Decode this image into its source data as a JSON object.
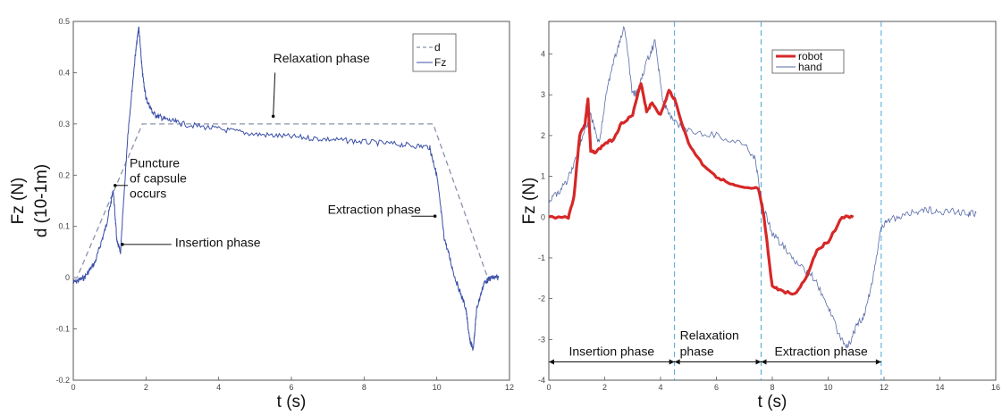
{
  "colors": {
    "signal": "#3b4fa8",
    "dashed": "#8a93a8",
    "robot": "#d62828",
    "hand": "#5a6ca8",
    "phase_line": "#49a6d6"
  },
  "chart_data": [
    {
      "type": "line",
      "xlabel": "t (s)",
      "ylabel_lines": [
        "Fz (N)",
        "d (10-1m)"
      ],
      "xlim": [
        0,
        12
      ],
      "ylim": [
        -0.2,
        0.5
      ],
      "xticks": [
        "0",
        "2",
        "4",
        "6",
        "8",
        "10",
        "12"
      ],
      "yticks": [
        "-0.2",
        "-0.1",
        "0",
        "0.1",
        "0.2",
        "0.3",
        "0.4",
        "0.5"
      ],
      "legend_position": "top-right",
      "series": [
        {
          "name": "d",
          "style": "dashed",
          "x": [
            0,
            0.1,
            1.9,
            9.9,
            11.4,
            11.7
          ],
          "y": [
            0,
            0,
            0.3,
            0.3,
            0,
            0
          ]
        },
        {
          "name": "Fz",
          "style": "noisy",
          "x": [
            0,
            0.3,
            0.6,
            0.9,
            1.1,
            1.2,
            1.3,
            1.5,
            1.7,
            1.8,
            1.9,
            2.0,
            2.2,
            2.5,
            3.0,
            4.0,
            5.0,
            6.0,
            7.0,
            8.0,
            9.0,
            9.8,
            10.0,
            10.2,
            10.5,
            10.8,
            10.9,
            11.0,
            11.1,
            11.3,
            11.5,
            11.7
          ],
          "y": [
            -0.01,
            0.0,
            0.03,
            0.1,
            0.17,
            0.07,
            0.05,
            0.28,
            0.43,
            0.49,
            0.4,
            0.35,
            0.32,
            0.31,
            0.3,
            0.29,
            0.28,
            0.275,
            0.27,
            0.265,
            0.26,
            0.255,
            0.2,
            0.08,
            0.0,
            -0.06,
            -0.12,
            -0.14,
            -0.06,
            -0.01,
            0.0,
            0.0
          ]
        }
      ],
      "annotations": [
        {
          "lines": [
            "Relaxation phase"
          ],
          "x": 5.5,
          "y": 0.31
        },
        {
          "lines": [
            "Puncture",
            "of capsule",
            "occurs"
          ],
          "x": 1.3,
          "y": 0.18
        },
        {
          "lines": [
            "Extraction phase"
          ],
          "x": 9.9,
          "y": 0.12
        },
        {
          "lines": [
            "Insertion phase"
          ],
          "x": 1.3,
          "y": 0.07
        }
      ]
    },
    {
      "type": "line",
      "xlabel": "t (s)",
      "ylabel_lines": [
        "Fz (N)"
      ],
      "xlim": [
        0,
        16
      ],
      "ylim": [
        -4,
        4.8
      ],
      "xticks": [
        "0",
        "2",
        "4",
        "6",
        "8",
        "10",
        "12",
        "14",
        "16"
      ],
      "yticks": [
        "-4",
        "-3",
        "-2",
        "-1",
        "0",
        "1",
        "2",
        "3",
        "4"
      ],
      "legend_position": "top-right",
      "series": [
        {
          "name": "robot",
          "style": "thick",
          "x": [
            0,
            0.7,
            0.9,
            1.1,
            1.3,
            1.4,
            1.5,
            1.7,
            2.0,
            2.3,
            2.6,
            3.0,
            3.3,
            3.5,
            3.7,
            4.0,
            4.3,
            4.5,
            5.0,
            5.5,
            6.0,
            6.5,
            7.0,
            7.5,
            7.7,
            8.0,
            8.3,
            8.8,
            9.2,
            9.6,
            10.0,
            10.5,
            10.9
          ],
          "y": [
            0,
            0,
            0.5,
            2.0,
            2.3,
            2.9,
            1.6,
            1.6,
            1.8,
            1.9,
            2.3,
            2.5,
            3.3,
            2.6,
            2.8,
            2.5,
            3.1,
            2.9,
            1.8,
            1.3,
            1.0,
            0.8,
            0.7,
            0.7,
            0.0,
            -1.7,
            -1.8,
            -1.9,
            -1.5,
            -0.8,
            -0.6,
            0.0,
            0.0
          ]
        },
        {
          "name": "hand",
          "style": "thin",
          "x": [
            0,
            0.3,
            0.6,
            0.9,
            1.2,
            1.5,
            1.8,
            2.1,
            2.4,
            2.7,
            3.0,
            3.2,
            3.5,
            3.8,
            4.1,
            4.4,
            5.0,
            6.0,
            7.0,
            7.4,
            7.6,
            8.0,
            8.5,
            9.0,
            9.5,
            10.0,
            10.4,
            10.7,
            11.0,
            11.3,
            11.6,
            11.9,
            12.1,
            12.5,
            13.0,
            13.5,
            14.0,
            14.5,
            15.0,
            15.3
          ],
          "y": [
            0.4,
            0.6,
            0.8,
            1.3,
            2.0,
            2.5,
            1.8,
            3.2,
            4.0,
            4.7,
            3.0,
            3.1,
            3.8,
            4.3,
            2.8,
            2.4,
            2.1,
            2.0,
            1.8,
            1.4,
            0.4,
            -0.4,
            -0.8,
            -1.2,
            -1.5,
            -2.2,
            -2.9,
            -3.2,
            -2.7,
            -2.4,
            -1.5,
            -0.3,
            -0.1,
            0.0,
            0.1,
            0.2,
            0.1,
            0.15,
            0.1,
            0.1
          ]
        }
      ],
      "phase_lines_x": [
        4.5,
        7.6,
        11.9
      ],
      "phases": [
        {
          "lines": [
            "Insertion phase"
          ],
          "from": 0,
          "to": 4.5
        },
        {
          "lines": [
            "Relaxation",
            "phase"
          ],
          "from": 4.5,
          "to": 7.6
        },
        {
          "lines": [
            "Extraction phase"
          ],
          "from": 7.6,
          "to": 11.9
        }
      ]
    }
  ]
}
